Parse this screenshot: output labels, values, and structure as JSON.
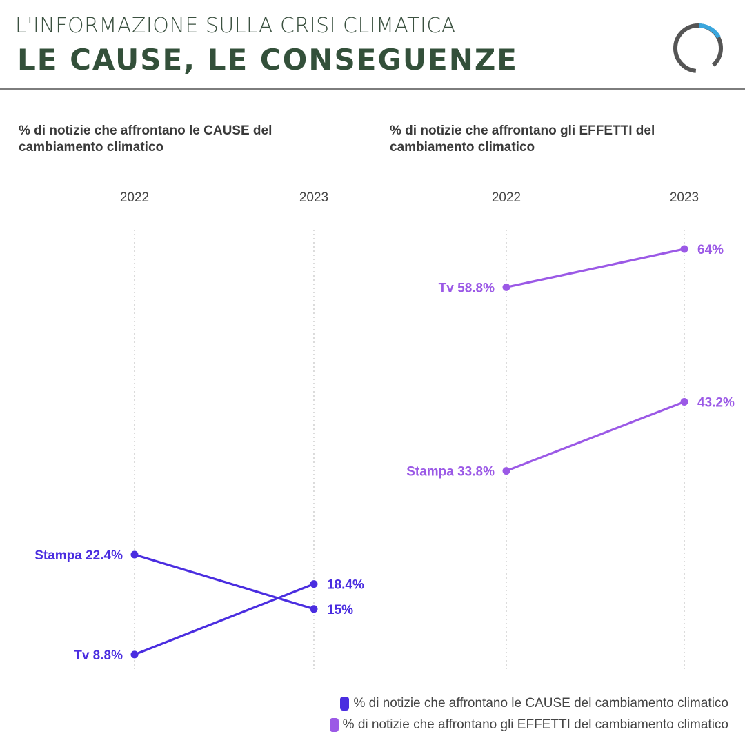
{
  "header": {
    "kicker": "L'INFORMAZIONE SULLA CRISI CLIMATICA",
    "title": "LE CAUSE, LE CONSEGUENZE",
    "logo_icon": "ring-logo-icon",
    "logo_colors": {
      "ring": "#555555",
      "accent": "#3aa6dd"
    }
  },
  "colors": {
    "cause": "#4a2de0",
    "effetti": "#9b59e6"
  },
  "chart_data": [
    {
      "type": "line",
      "subtype": "slope",
      "title_lines": [
        "% di notizie che affrontano le CAUSE del",
        "cambiamento climatico"
      ],
      "categories": [
        "2022",
        "2023"
      ],
      "series": [
        {
          "name": "Stampa",
          "values": [
            22.4,
            15
          ],
          "labels": [
            "Stampa 22.4%",
            "15%"
          ]
        },
        {
          "name": "Tv",
          "values": [
            8.8,
            18.4
          ],
          "labels": [
            "Tv 8.8%",
            "18.4%"
          ]
        }
      ],
      "color_key": "cause",
      "ylim": [
        7,
        67
      ]
    },
    {
      "type": "line",
      "subtype": "slope",
      "title_lines": [
        "% di notizie che affrontano gli EFFETTI del",
        "cambiamento climatico"
      ],
      "categories": [
        "2022",
        "2023"
      ],
      "series": [
        {
          "name": "Tv",
          "values": [
            58.8,
            64
          ],
          "labels": [
            "Tv 58.8%",
            "64%"
          ]
        },
        {
          "name": "Stampa",
          "values": [
            33.8,
            43.2
          ],
          "labels": [
            "Stampa 33.8%",
            "43.2%"
          ]
        }
      ],
      "color_key": "effetti",
      "ylim": [
        7,
        67
      ]
    }
  ],
  "legend": [
    {
      "label": "% di notizie che affrontano le CAUSE del cambiamento climatico",
      "color_key": "cause"
    },
    {
      "label": "% di notizie che affrontano gli EFFETTI del cambiamento climatico",
      "color_key": "effetti"
    }
  ]
}
